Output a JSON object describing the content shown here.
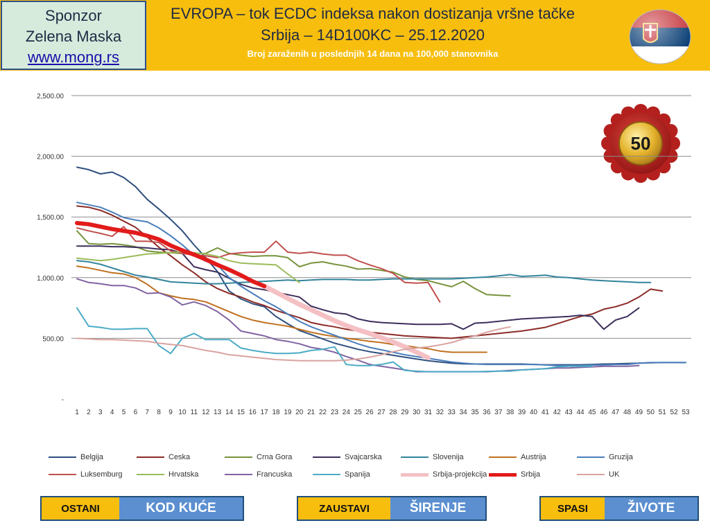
{
  "sponsor": {
    "line1": "Sponzor",
    "line2": "Zelena Maska",
    "link": "www.mong.rs"
  },
  "header": {
    "title_line1": "EVROPA – tok ECDC indeksa nakon dostizanja vršne tačke",
    "title_line2": "Srbija – 14D100KC – 25.12.2020",
    "subtitle": "Broj zaraženih u poslednjih 14 dana na 100,000 stanovnika"
  },
  "badge": {
    "value": "50"
  },
  "chart_data": {
    "type": "line",
    "x": [
      1,
      2,
      3,
      4,
      5,
      6,
      7,
      8,
      9,
      10,
      11,
      12,
      13,
      14,
      15,
      16,
      17,
      18,
      19,
      20,
      21,
      22,
      23,
      24,
      25,
      26,
      27,
      28,
      29,
      30,
      31,
      32,
      33,
      34,
      35,
      36,
      37,
      38,
      39,
      40,
      41,
      42,
      43,
      44,
      45,
      46,
      47,
      48,
      49,
      50,
      51,
      52,
      53
    ],
    "ylim": [
      0,
      2500
    ],
    "yticks": [
      "-",
      "500.00",
      "1,000.00",
      "1,500.00",
      "2,000.00",
      "2,500.00"
    ],
    "grid": true,
    "legend_position": "bottom",
    "series": [
      {
        "name": "Belgija",
        "color": "#2e4f7f",
        "values": [
          1910,
          1890,
          1855,
          1870,
          1825,
          1750,
          1645,
          1565,
          1480,
          1385,
          1270,
          1165,
          1050,
          890,
          825,
          785,
          760,
          680,
          620,
          565,
          530,
          495,
          460,
          435,
          410,
          390,
          375,
          360,
          345,
          330,
          315,
          305,
          295,
          290,
          288,
          288,
          288,
          288,
          288,
          285,
          282,
          282,
          282,
          282,
          285,
          288,
          290,
          292,
          295,
          298,
          300,
          300,
          300
        ]
      },
      {
        "name": "Ceska",
        "color": "#8b2b26",
        "values": [
          1590,
          1580,
          1555,
          1515,
          1465,
          1415,
          1335,
          1250,
          1180,
          1105,
          1040,
          965,
          910,
          870,
          840,
          800,
          770,
          730,
          700,
          670,
          630,
          610,
          595,
          575,
          560,
          550,
          540,
          530,
          520,
          515,
          510,
          505,
          500,
          510,
          520,
          530,
          540,
          550,
          560,
          575,
          590,
          620,
          650,
          680,
          700,
          740,
          760,
          790,
          840,
          905,
          890,
          null,
          null
        ]
      },
      {
        "name": "Crna Gora",
        "color": "#77933c",
        "values": [
          1385,
          1280,
          1275,
          1280,
          1270,
          1255,
          1220,
          1210,
          1205,
          1200,
          1195,
          1200,
          1245,
          1200,
          1185,
          1175,
          1180,
          1180,
          1165,
          1090,
          1120,
          1130,
          1110,
          1095,
          1070,
          1075,
          1060,
          1045,
          1005,
          985,
          975,
          950,
          925,
          970,
          910,
          860,
          855,
          850,
          null,
          null,
          null,
          null,
          null,
          null,
          null,
          null,
          null,
          null,
          null,
          null,
          null,
          null,
          null
        ]
      },
      {
        "name": "Svajcarska",
        "color": "#3d2e5c",
        "values": [
          1260,
          1260,
          1260,
          1255,
          1255,
          1250,
          1245,
          1235,
          1230,
          1200,
          1090,
          1065,
          1045,
          995,
          945,
          915,
          900,
          880,
          860,
          840,
          765,
          735,
          710,
          700,
          660,
          640,
          630,
          625,
          620,
          615,
          615,
          615,
          620,
          575,
          625,
          630,
          640,
          650,
          660,
          665,
          670,
          675,
          680,
          690,
          680,
          575,
          650,
          680,
          750,
          null,
          null,
          null,
          null
        ]
      },
      {
        "name": "Slovenija",
        "color": "#31849b",
        "values": [
          1140,
          1130,
          1110,
          1080,
          1050,
          1020,
          1005,
          985,
          965,
          960,
          955,
          950,
          950,
          955,
          960,
          965,
          970,
          975,
          980,
          975,
          980,
          985,
          985,
          985,
          980,
          980,
          985,
          990,
          990,
          990,
          990,
          990,
          990,
          995,
          1000,
          1005,
          1015,
          1025,
          1010,
          1015,
          1020,
          1005,
          1000,
          990,
          980,
          975,
          970,
          965,
          960,
          960,
          null,
          null,
          null
        ]
      },
      {
        "name": "Austrija",
        "color": "#c0701f",
        "values": [
          1095,
          1080,
          1060,
          1040,
          1030,
          1000,
          945,
          875,
          850,
          830,
          820,
          800,
          760,
          720,
          680,
          650,
          630,
          615,
          600,
          575,
          550,
          530,
          515,
          500,
          490,
          475,
          465,
          450,
          440,
          425,
          415,
          395,
          385,
          385,
          385,
          385,
          null,
          null,
          null,
          null,
          null,
          null,
          null,
          null,
          null,
          null,
          null,
          null,
          null,
          null,
          null,
          null,
          null
        ]
      },
      {
        "name": "Gruzija",
        "color": "#4a7ebb",
        "values": [
          1620,
          1600,
          1580,
          1540,
          1495,
          1475,
          1460,
          1410,
          1345,
          1270,
          1185,
          1135,
          1105,
          1000,
          930,
          870,
          810,
          760,
          700,
          640,
          595,
          560,
          525,
          490,
          455,
          425,
          405,
          385,
          365,
          350,
          335,
          320,
          305,
          295,
          288,
          285,
          285,
          285,
          285,
          285,
          280,
          275,
          275,
          275,
          280,
          280,
          285,
          285,
          295,
          300,
          300,
          300,
          300
        ]
      },
      {
        "name": "Luksemburg",
        "color": "#c0504d",
        "values": [
          1410,
          1385,
          1365,
          1340,
          1420,
          1300,
          1300,
          1290,
          1220,
          1200,
          1185,
          1180,
          1165,
          1195,
          1205,
          1210,
          1210,
          1300,
          1210,
          1200,
          1210,
          1195,
          1185,
          1185,
          1140,
          1105,
          1075,
          1035,
          960,
          955,
          960,
          800,
          null,
          null,
          null,
          null,
          null,
          null,
          null,
          null,
          null,
          null,
          null,
          null,
          null,
          null,
          null,
          null,
          null,
          null,
          null,
          null,
          null
        ]
      },
      {
        "name": "Hrvatska",
        "color": "#9bbb59",
        "values": [
          1160,
          1150,
          1140,
          1150,
          1165,
          1180,
          1195,
          1200,
          1205,
          1215,
          1205,
          1195,
          1175,
          1140,
          1120,
          1115,
          1110,
          1105,
          1030,
          960,
          null,
          null,
          null,
          null,
          null,
          null,
          null,
          null,
          null,
          null,
          null,
          null,
          null,
          null,
          null,
          null,
          null,
          null,
          null,
          null,
          null,
          null,
          null,
          null,
          null,
          null,
          null,
          null,
          null,
          null,
          null,
          null,
          null
        ]
      },
      {
        "name": "Francuska",
        "color": "#8064a2",
        "values": [
          990,
          960,
          950,
          935,
          935,
          915,
          870,
          875,
          840,
          775,
          800,
          770,
          720,
          650,
          560,
          540,
          520,
          490,
          475,
          455,
          425,
          410,
          385,
          350,
          320,
          285,
          270,
          255,
          240,
          225,
          225,
          225,
          225,
          225,
          225,
          225,
          230,
          235,
          240,
          245,
          250,
          255,
          255,
          260,
          265,
          270,
          270,
          270,
          275,
          null,
          null,
          null,
          null
        ]
      },
      {
        "name": "Spanija",
        "color": "#4bacc6",
        "values": [
          750,
          600,
          590,
          575,
          575,
          580,
          580,
          440,
          375,
          500,
          540,
          490,
          490,
          490,
          420,
          400,
          385,
          375,
          375,
          380,
          400,
          410,
          430,
          285,
          275,
          275,
          285,
          305,
          235,
          230,
          225,
          225,
          225,
          225,
          225,
          228,
          230,
          230,
          240,
          245,
          250,
          265,
          270,
          270,
          270,
          null,
          null,
          null,
          null,
          null,
          null,
          null,
          null
        ]
      },
      {
        "name": "Srbija-projekcija",
        "color": "#f4c0c4",
        "values": [
          null,
          null,
          null,
          null,
          null,
          null,
          null,
          null,
          null,
          null,
          null,
          null,
          null,
          null,
          null,
          null,
          930,
          880,
          830,
          780,
          735,
          690,
          645,
          605,
          570,
          540,
          505,
          470,
          430,
          385,
          340,
          null,
          null,
          null,
          null,
          null,
          null,
          null,
          null,
          null,
          null,
          null,
          null,
          null,
          null,
          null,
          null,
          null,
          null,
          null,
          null,
          null,
          null
        ]
      },
      {
        "name": "Srbija",
        "color": "#e21b1b",
        "values": [
          1450,
          1440,
          1420,
          1400,
          1385,
          1370,
          1345,
          1315,
          1265,
          1225,
          1190,
          1150,
          1105,
          1065,
          1020,
          970,
          930,
          null,
          null,
          null,
          null,
          null,
          null,
          null,
          null,
          null,
          null,
          null,
          null,
          null,
          null,
          null,
          null,
          null,
          null,
          null,
          null,
          null,
          null,
          null,
          null,
          null,
          null,
          null,
          null,
          null,
          null,
          null,
          null,
          null,
          null,
          null,
          null
        ]
      },
      {
        "name": "UK",
        "color": "#d9a3a0",
        "values": [
          500,
          495,
          490,
          490,
          485,
          480,
          475,
          460,
          450,
          440,
          420,
          400,
          385,
          365,
          355,
          345,
          335,
          325,
          320,
          315,
          315,
          315,
          315,
          320,
          330,
          345,
          365,
          390,
          410,
          420,
          430,
          445,
          465,
          495,
          520,
          550,
          575,
          595,
          null,
          null,
          null,
          null,
          null,
          null,
          null,
          null,
          null,
          null,
          null,
          null,
          null,
          null,
          null
        ]
      }
    ]
  },
  "legend": [
    {
      "name": "Belgija",
      "color": "#2e4f7f"
    },
    {
      "name": "Ceska",
      "color": "#8b2b26"
    },
    {
      "name": "Crna Gora",
      "color": "#77933c"
    },
    {
      "name": "Svajcarska",
      "color": "#3d2e5c"
    },
    {
      "name": "Slovenija",
      "color": "#31849b"
    },
    {
      "name": "Austrija",
      "color": "#c0701f"
    },
    {
      "name": "Gruzija",
      "color": "#4a7ebb"
    },
    {
      "name": "Luksemburg",
      "color": "#c0504d"
    },
    {
      "name": "Hrvatska",
      "color": "#9bbb59"
    },
    {
      "name": "Francuska",
      "color": "#8064a2"
    },
    {
      "name": "Spanija",
      "color": "#4bacc6"
    },
    {
      "name": "Srbija-projekcija",
      "color": "#f4c0c4"
    },
    {
      "name": "Srbija",
      "color": "#e21b1b"
    },
    {
      "name": "UK",
      "color": "#d9a3a0"
    }
  ],
  "buttons": [
    {
      "a": "OSTANI",
      "b": "KOD KUĆE"
    },
    {
      "a": "ZAUSTAVI",
      "b": "ŠIRENJE"
    },
    {
      "a": "SPASI",
      "b": "ŽIVOTE"
    }
  ],
  "colors": {
    "header_bg": "#f7be0e",
    "button_blue": "#5b8fd0",
    "button_yellow": "#f7be0e"
  }
}
